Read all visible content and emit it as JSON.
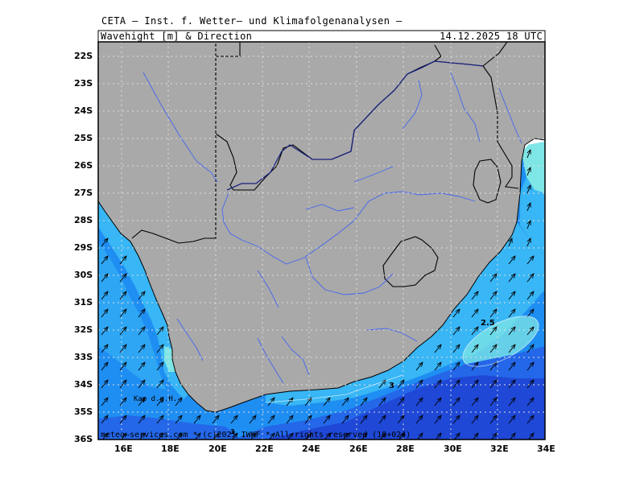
{
  "header": {
    "title": "CETA — Inst. f. Wetter— und Klimafolgenanalysen —",
    "subtitle": "Wavehight [m] & Direction",
    "valid_time": "14.12.2025 18 UTC"
  },
  "map": {
    "lat_labels": [
      "22S",
      "23S",
      "24S",
      "25S",
      "26S",
      "27S",
      "28S",
      "29S",
      "30S",
      "31S",
      "32S",
      "33S",
      "34S",
      "35S",
      "36S"
    ],
    "lon_labels": [
      "16E",
      "18E",
      "20E",
      "22E",
      "24E",
      "26E",
      "28E",
      "30E",
      "32E",
      "34E"
    ],
    "contour_labels": [
      "2.5",
      "3",
      "3"
    ],
    "place_label": "Kap d.g.H.",
    "footer": "meteo—services.com * (c)2025 IWKF * All rights reserved (18+024)",
    "colors": {
      "land": "#a9a9a9",
      "sea_low": "#7fe6e6",
      "sea_mid": "#38b6f5",
      "sea_main": "#1f8ef2",
      "sea_high": "#2467e8",
      "sea_max": "#1f48d6",
      "border": "#000000",
      "river": "#4466ee",
      "province_border": "#1a237e"
    }
  }
}
